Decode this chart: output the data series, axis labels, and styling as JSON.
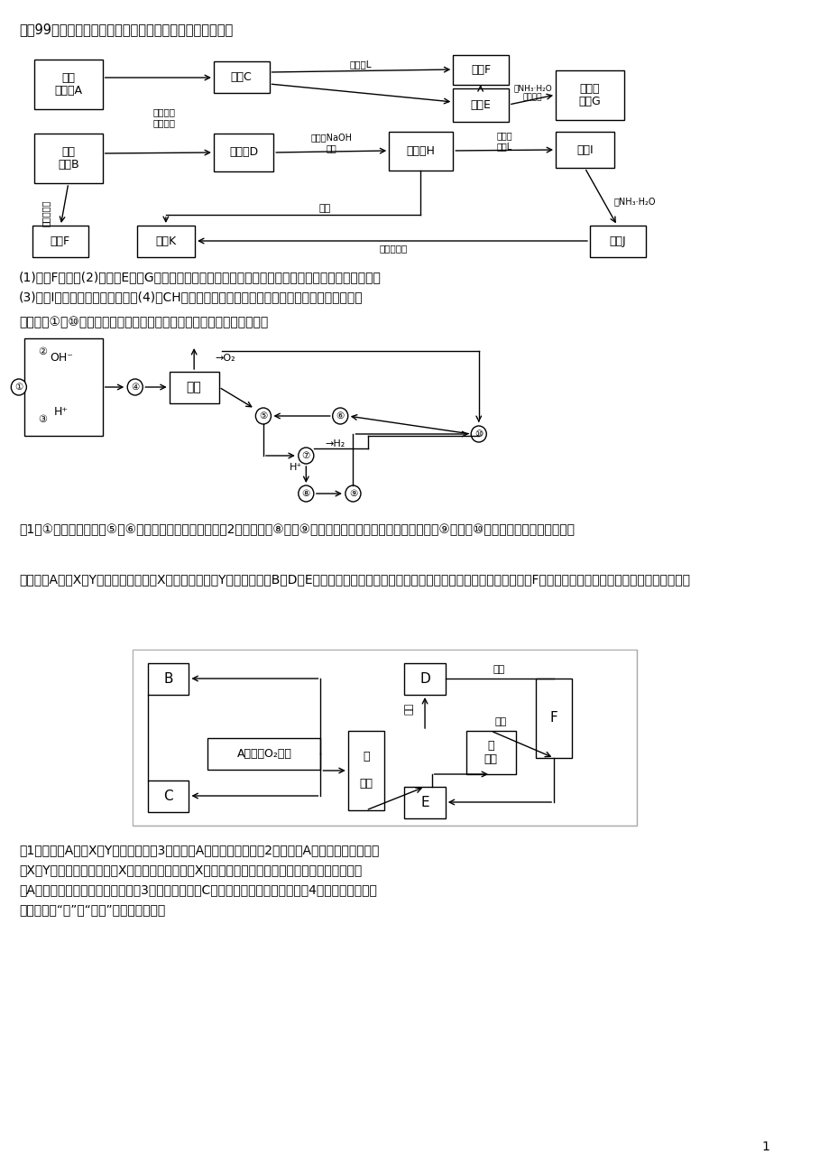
{
  "title_text": "一（99）提示：某些金属氧化物跟燕融烧碱反应可生成盐。",
  "bg_color": "#ffffff",
  "section2_text": "二、下图①到⑩分别代表反应中的一种物质，且它们均为化学中常见物质",
  "section3_text": "三、气体A只含X、Y两种短周期元素，X的原子序数大于Y的原子序数。B、D、E是中学化学中的常见气体。固体甲为单质，固体乙为金属氧化物，F为金属单质。各物质有如图所示的转化关系。",
  "q1_text": "(1)单质F是＿。(2)写出由E生成G的离子反应方程式（或化学方程式）＿＿＿＿＿＿＿＿＿＿＿＿＿。",
  "q2_text": "(3)溶液I中所含金属离子是＿＿。(4)由CH若改用浓酸，则不能选用的浓酸是（写分子式）＿＿。",
  "q3_text": "（1）①的化学式为＿，⑤和⑥反应的化学方程式为＿。（2）实验室由⑧制取⑨的操作为＿，反应的化学方程式为＿，⑨转变为⑩的化学方程式为＿＿＿＿。",
  "q3_text2": "化学方程式为＿，⑨转变为⑩的化学方程式为＿＿＿＿。",
  "q4_line1": "（1）若气体A中，X与Y的质量比小于3，则气体A中肯定有＿＿＿（2）若气体A的分子为线型结构，",
  "q4_line2": "且X与Y两元素的质量比等于X的相对原子质量，则X位于元素周期表的第＿＿周期＿＿族，实验室制",
  "q4_line3": "备A的化学反应方程式为＿＿＿＿（3）写出固体甲与C反应的化学方程式＿＿＿＿（4）能否确定乙固体",
  "q4_line4": "的成分（填“能”或“不能”）＿＿＿＿＿＿",
  "page_num": "1"
}
